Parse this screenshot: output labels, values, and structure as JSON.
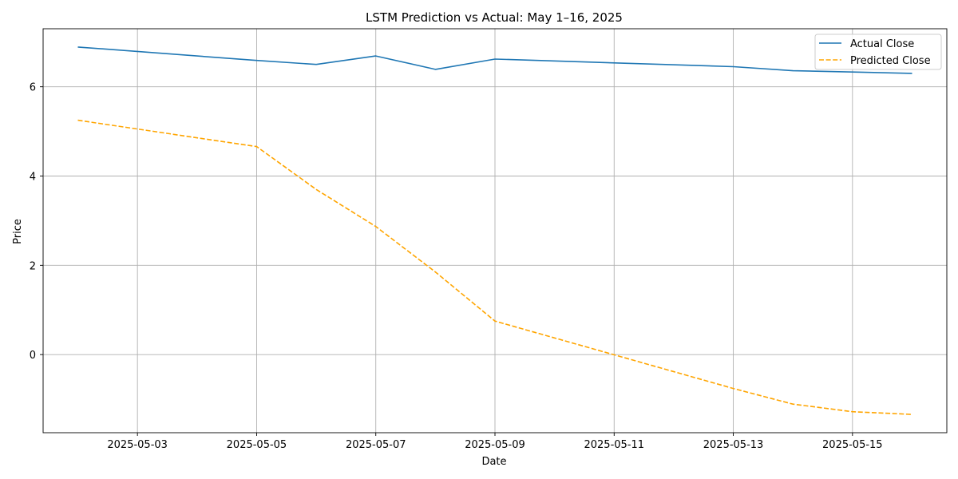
{
  "chart_data": {
    "type": "line",
    "title": "LSTM Prediction vs Actual: May 1–16, 2025",
    "xlabel": "Date",
    "ylabel": "Price",
    "x_type": "date",
    "xlim": [
      "2025-05-01T10:00",
      "2025-05-16T14:00"
    ],
    "ylim": [
      -1.75,
      7.3
    ],
    "x_ticks": [
      "2025-05-03",
      "2025-05-05",
      "2025-05-07",
      "2025-05-09",
      "2025-05-11",
      "2025-05-13",
      "2025-05-15"
    ],
    "y_ticks": [
      0,
      2,
      4,
      6
    ],
    "grid": true,
    "legend_position": "top-right",
    "series": [
      {
        "name": "Actual Close",
        "color": "#1f77b4",
        "style": "solid",
        "points": [
          {
            "x": "2025-05-02",
            "y": 6.89
          },
          {
            "x": "2025-05-05",
            "y": 6.59
          },
          {
            "x": "2025-05-06",
            "y": 6.5
          },
          {
            "x": "2025-05-07",
            "y": 6.69
          },
          {
            "x": "2025-05-08",
            "y": 6.39
          },
          {
            "x": "2025-05-09",
            "y": 6.62
          },
          {
            "x": "2025-05-13",
            "y": 6.45
          },
          {
            "x": "2025-05-14",
            "y": 6.36
          },
          {
            "x": "2025-05-15",
            "y": 6.33
          },
          {
            "x": "2025-05-16",
            "y": 6.3
          }
        ]
      },
      {
        "name": "Predicted Close",
        "color": "#ffa500",
        "style": "dashed",
        "points": [
          {
            "x": "2025-05-02",
            "y": 5.25
          },
          {
            "x": "2025-05-05",
            "y": 4.66
          },
          {
            "x": "2025-05-06",
            "y": 3.7
          },
          {
            "x": "2025-05-07",
            "y": 2.87
          },
          {
            "x": "2025-05-08",
            "y": 1.85
          },
          {
            "x": "2025-05-09",
            "y": 0.75
          },
          {
            "x": "2025-05-13",
            "y": -0.76
          },
          {
            "x": "2025-05-14",
            "y": -1.11
          },
          {
            "x": "2025-05-15",
            "y": -1.28
          },
          {
            "x": "2025-05-16",
            "y": -1.34
          }
        ]
      }
    ]
  }
}
